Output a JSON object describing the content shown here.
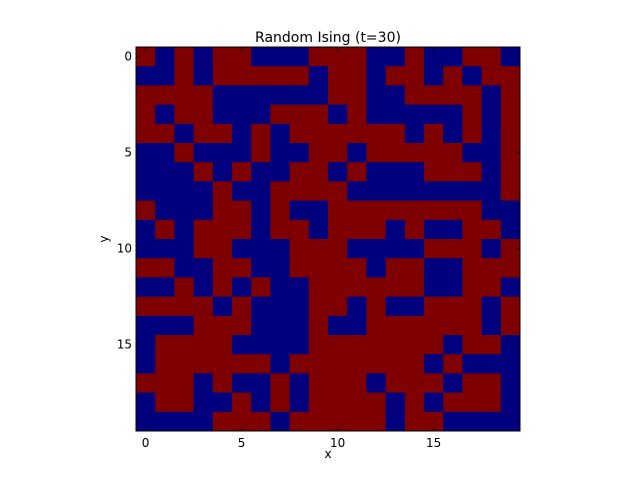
{
  "chart_data": {
    "type": "heatmap",
    "title": "Random Ising (t=30)",
    "xlabel": "x",
    "ylabel": "y",
    "x_ticks": [
      0,
      5,
      10,
      15
    ],
    "y_ticks": [
      0,
      5,
      10,
      15
    ],
    "xlim": [
      -0.5,
      19.5
    ],
    "ylim": [
      19.5,
      -0.5
    ],
    "grid": false,
    "colors": {
      "-1": "#00007f",
      "1": "#7f0000"
    },
    "values": [
      [
        1,
        -1,
        1,
        -1,
        1,
        1,
        -1,
        -1,
        -1,
        1,
        1,
        1,
        -1,
        -1,
        1,
        -1,
        -1,
        1,
        1,
        -1
      ],
      [
        -1,
        -1,
        1,
        -1,
        1,
        1,
        1,
        1,
        1,
        -1,
        1,
        1,
        -1,
        1,
        1,
        -1,
        1,
        -1,
        1,
        1
      ],
      [
        1,
        1,
        1,
        1,
        -1,
        -1,
        -1,
        -1,
        -1,
        -1,
        1,
        1,
        -1,
        -1,
        1,
        1,
        1,
        1,
        -1,
        1
      ],
      [
        1,
        -1,
        1,
        1,
        -1,
        -1,
        -1,
        1,
        1,
        1,
        -1,
        1,
        -1,
        -1,
        -1,
        -1,
        -1,
        1,
        -1,
        1
      ],
      [
        1,
        1,
        -1,
        1,
        1,
        -1,
        1,
        -1,
        1,
        1,
        1,
        1,
        1,
        1,
        -1,
        1,
        -1,
        1,
        -1,
        1
      ],
      [
        -1,
        -1,
        1,
        -1,
        -1,
        -1,
        1,
        -1,
        -1,
        1,
        1,
        -1,
        1,
        1,
        1,
        1,
        1,
        -1,
        -1,
        1
      ],
      [
        -1,
        -1,
        -1,
        1,
        -1,
        1,
        -1,
        -1,
        1,
        1,
        -1,
        1,
        -1,
        -1,
        -1,
        1,
        1,
        1,
        -1,
        1
      ],
      [
        -1,
        -1,
        -1,
        -1,
        1,
        -1,
        -1,
        1,
        1,
        1,
        1,
        -1,
        -1,
        -1,
        -1,
        -1,
        -1,
        -1,
        -1,
        1
      ],
      [
        1,
        -1,
        -1,
        -1,
        1,
        1,
        -1,
        1,
        -1,
        -1,
        1,
        1,
        1,
        1,
        1,
        1,
        1,
        1,
        -1,
        -1
      ],
      [
        -1,
        1,
        -1,
        1,
        1,
        1,
        -1,
        1,
        1,
        -1,
        1,
        1,
        1,
        -1,
        1,
        -1,
        -1,
        1,
        1,
        -1
      ],
      [
        -1,
        -1,
        -1,
        1,
        1,
        -1,
        -1,
        -1,
        1,
        1,
        1,
        -1,
        -1,
        -1,
        -1,
        1,
        1,
        1,
        -1,
        1
      ],
      [
        1,
        1,
        -1,
        -1,
        1,
        1,
        -1,
        -1,
        1,
        1,
        1,
        1,
        -1,
        1,
        1,
        -1,
        -1,
        1,
        1,
        1
      ],
      [
        -1,
        -1,
        1,
        -1,
        1,
        -1,
        1,
        -1,
        -1,
        1,
        1,
        1,
        1,
        1,
        1,
        -1,
        -1,
        1,
        1,
        -1
      ],
      [
        1,
        1,
        1,
        1,
        -1,
        1,
        -1,
        -1,
        -1,
        1,
        1,
        -1,
        1,
        -1,
        -1,
        1,
        1,
        1,
        -1,
        1
      ],
      [
        -1,
        -1,
        -1,
        1,
        1,
        1,
        -1,
        -1,
        -1,
        1,
        -1,
        -1,
        1,
        1,
        1,
        1,
        1,
        1,
        -1,
        1
      ],
      [
        -1,
        1,
        1,
        1,
        1,
        -1,
        -1,
        -1,
        -1,
        1,
        1,
        1,
        1,
        1,
        1,
        1,
        -1,
        1,
        1,
        -1
      ],
      [
        -1,
        1,
        1,
        1,
        1,
        1,
        1,
        -1,
        1,
        1,
        1,
        1,
        1,
        1,
        1,
        -1,
        1,
        -1,
        -1,
        -1
      ],
      [
        1,
        1,
        1,
        -1,
        1,
        -1,
        -1,
        1,
        -1,
        1,
        1,
        1,
        -1,
        1,
        1,
        1,
        -1,
        1,
        1,
        -1
      ],
      [
        -1,
        1,
        1,
        -1,
        -1,
        1,
        -1,
        1,
        -1,
        1,
        1,
        1,
        1,
        -1,
        1,
        -1,
        1,
        1,
        1,
        -1
      ],
      [
        -1,
        -1,
        -1,
        -1,
        1,
        1,
        1,
        -1,
        1,
        1,
        1,
        1,
        1,
        -1,
        1,
        1,
        -1,
        -1,
        -1,
        -1
      ]
    ]
  }
}
